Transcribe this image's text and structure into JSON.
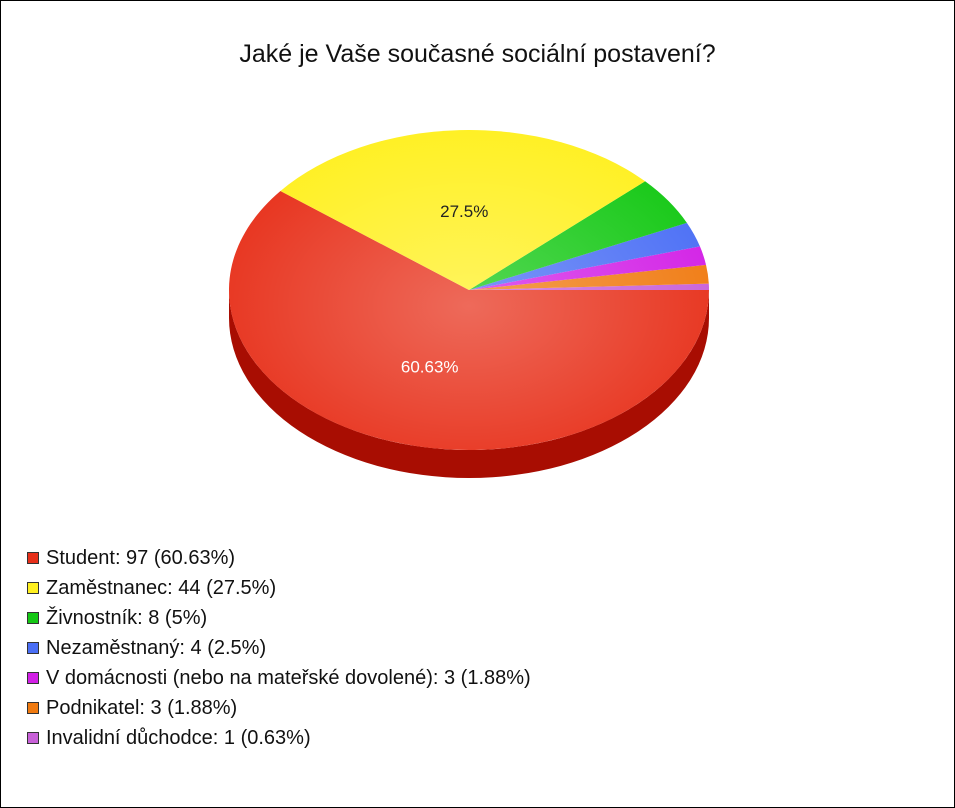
{
  "chart_data": {
    "type": "pie",
    "title": "Jaké je Vaše současné sociální postavení?",
    "slices": [
      {
        "label": "Student",
        "count": 97,
        "percent": 60.63,
        "color": "#e7301a",
        "dark": "#a80d02",
        "legend": "Student: 97 (60.63%)",
        "slice_label": "60.63%"
      },
      {
        "label": "Zaměstnanec",
        "count": 44,
        "percent": 27.5,
        "color": "#fff020",
        "dark": "#c8b800",
        "legend": "Zaměstnanec: 44 (27.5%)",
        "slice_label": "27.5%"
      },
      {
        "label": "Živnostník",
        "count": 8,
        "percent": 5,
        "color": "#14c814",
        "dark": "#0a8a0a",
        "legend": "Živnostník: 8 (5%)",
        "slice_label": ""
      },
      {
        "label": "Nezaměstnaný",
        "count": 4,
        "percent": 2.5,
        "color": "#4a6ef5",
        "dark": "#2a44b0",
        "legend": "Nezaměstnaný: 4 (2.5%)",
        "slice_label": ""
      },
      {
        "label": "V domácnosti (nebo na mateřské dovolené)",
        "count": 3,
        "percent": 1.88,
        "color": "#d21fe6",
        "dark": "#9010a0",
        "legend": "V domácnosti (nebo na mateřské dovolené): 3 (1.88%)",
        "slice_label": ""
      },
      {
        "label": "Podnikatel",
        "count": 3,
        "percent": 1.88,
        "color": "#f07a10",
        "dark": "#b05000",
        "legend": "Podnikatel: 3 (1.88%)",
        "slice_label": ""
      },
      {
        "label": "Invalidní důchodce",
        "count": 1,
        "percent": 0.63,
        "color": "#c860d8",
        "dark": "#8a3a9a",
        "legend": "Invalidní důchodce: 1 (0.63%)",
        "slice_label": ""
      }
    ]
  }
}
